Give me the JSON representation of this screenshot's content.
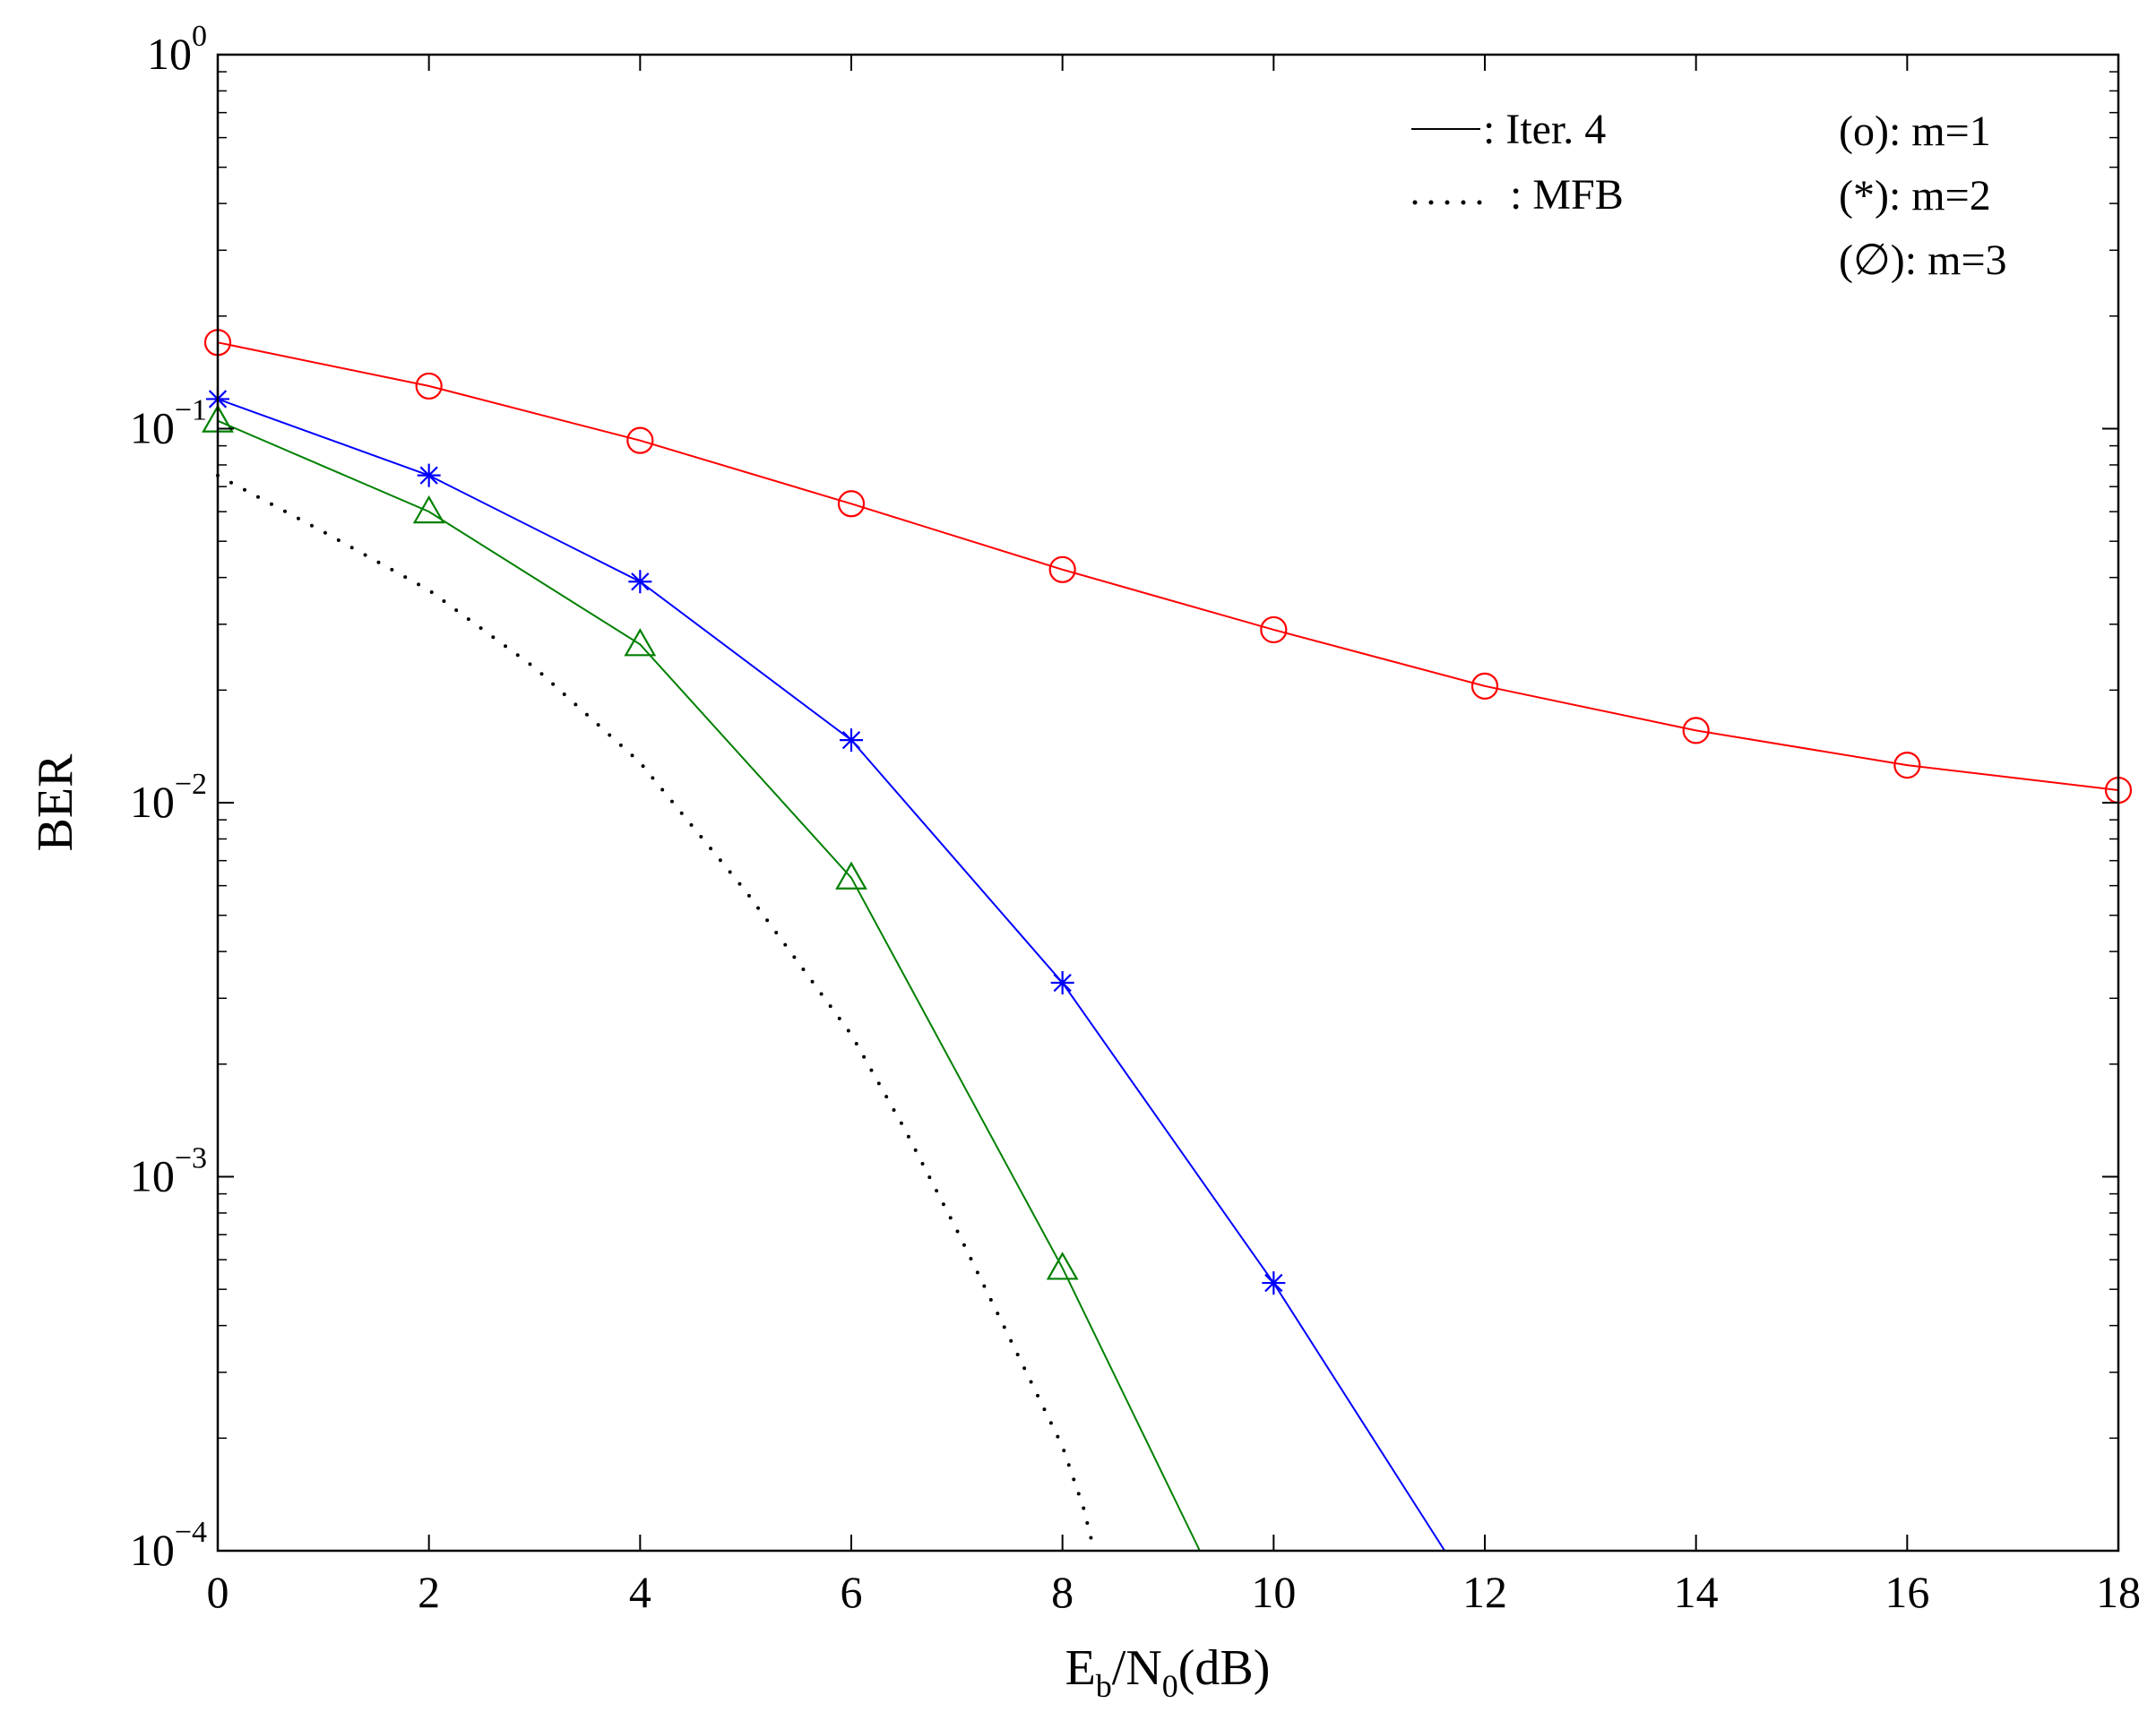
{
  "chart_data": {
    "type": "line",
    "title": "",
    "xlabel": {
      "base": "E",
      "sub1": "b",
      "mid": "/N",
      "sub2": "0",
      "tail": "(dB)"
    },
    "ylabel": "BER",
    "xlim": [
      0,
      18
    ],
    "ylim": [
      0.0001,
      1
    ],
    "yscale": "log",
    "xticks": [
      0,
      2,
      4,
      6,
      8,
      10,
      12,
      14,
      16,
      18
    ],
    "yticks": [
      {
        "value": 1,
        "base": "10",
        "exp": "0"
      },
      {
        "value": 0.1,
        "base": "10",
        "exp": "−1"
      },
      {
        "value": 0.01,
        "base": "10",
        "exp": "−2"
      },
      {
        "value": 0.001,
        "base": "10",
        "exp": "−3"
      },
      {
        "value": 0.0001,
        "base": "10",
        "exp": "−4"
      }
    ],
    "grid": false,
    "legend": {
      "line_styles": [
        {
          "style": "solid",
          "label": ": Iter. 4"
        },
        {
          "style": "dotted",
          "label": ": MFB"
        }
      ],
      "markers": [
        {
          "marker": "circle",
          "label": "(o): m=1"
        },
        {
          "marker": "star",
          "label": "(*): m=2"
        },
        {
          "marker": "triangle",
          "label": "(∅): m=3"
        }
      ]
    },
    "series": [
      {
        "style": "solid",
        "marker": "circle",
        "color": "#ff0000",
        "x": [
          0,
          2,
          4,
          6,
          8,
          10,
          12,
          14,
          16,
          18
        ],
        "y": [
          0.17,
          0.13,
          0.093,
          0.063,
          0.042,
          0.029,
          0.0205,
          0.0156,
          0.0126,
          0.0108
        ]
      },
      {
        "style": "solid",
        "marker": "star",
        "color": "#0000ff",
        "x": [
          0,
          2,
          4,
          6,
          8,
          10,
          11.62
        ],
        "y": [
          0.12,
          0.075,
          0.039,
          0.0147,
          0.0033,
          0.00052,
          0.0001
        ],
        "marker_count": 6
      },
      {
        "style": "solid",
        "marker": "triangle",
        "color": "#008000",
        "x": [
          0,
          2,
          4,
          6,
          8,
          9.3
        ],
        "y": [
          0.105,
          0.06,
          0.0265,
          0.0063,
          0.00057,
          0.0001
        ],
        "marker_count": 5
      },
      {
        "style": "dotted",
        "marker": "none",
        "color": "#000000",
        "x": [
          0,
          1,
          2,
          3,
          4,
          5,
          6,
          6.5,
          7,
          7.5,
          8,
          8.2,
          8.3
        ],
        "y": [
          0.075,
          0.053,
          0.037,
          0.023,
          0.0128,
          0.0058,
          0.0024,
          0.00135,
          0.00072,
          0.00037,
          0.00019,
          0.00013,
          0.0001
        ]
      }
    ]
  }
}
